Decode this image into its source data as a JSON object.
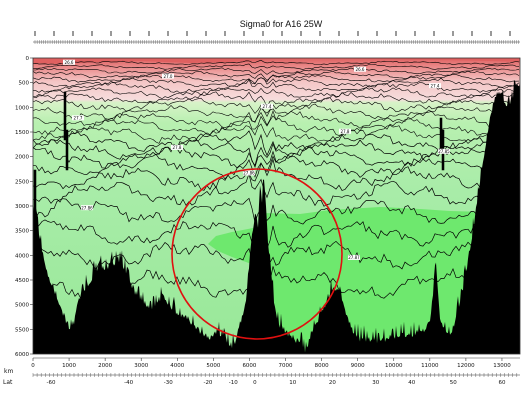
{
  "chart_data": {
    "type": "section",
    "title": "Sigma0 for A16 25W",
    "x_axis_label": "km",
    "x2_axis_label": "Lat",
    "xlim": [
      0,
      13500
    ],
    "ylim": [
      6000,
      0
    ],
    "x_ticks": [
      0,
      1000,
      2000,
      3000,
      4000,
      5000,
      6000,
      7000,
      8000,
      9000,
      10000,
      11000,
      12000,
      13000
    ],
    "y_ticks": [
      0,
      500,
      1000,
      1500,
      2000,
      2500,
      3000,
      3500,
      4000,
      4500,
      5000,
      5500,
      6000
    ],
    "lat_ticks": [
      {
        "label": "-60",
        "km": 500
      },
      {
        "label": "-40",
        "km": 2650
      },
      {
        "label": "-30",
        "km": 3750
      },
      {
        "label": "-20",
        "km": 4850
      },
      {
        "label": "-10",
        "km": 5550
      },
      {
        "label": "0",
        "km": 6150
      },
      {
        "label": "10",
        "km": 7200
      },
      {
        "label": "20",
        "km": 8300
      },
      {
        "label": "30",
        "km": 9500
      },
      {
        "label": "40",
        "km": 10500
      },
      {
        "label": "50",
        "km": 11650
      },
      {
        "label": "60",
        "km": 13000
      }
    ],
    "contour_depths_m": [
      100,
      180,
      260,
      340,
      420,
      500,
      600,
      700,
      820,
      950,
      1100,
      1250,
      1400,
      1550,
      1700,
      1850,
      2000,
      2200,
      2450,
      2750,
      3100,
      3550,
      4000,
      4600
    ],
    "contour_labels": [
      "26.6",
      "27.0",
      "27.4",
      "27.7",
      "27.8",
      "27.85",
      "27.86",
      "27.87",
      "27.88"
    ],
    "colors": {
      "surface_red": "#e06060",
      "upper_pink": "#f4c8c8",
      "mid_green": "#a8efa8",
      "deep_green": "#6ee86e",
      "bottom_water": "#64e464",
      "topography": "#000000",
      "annotation_circle": "#e01010"
    }
  }
}
